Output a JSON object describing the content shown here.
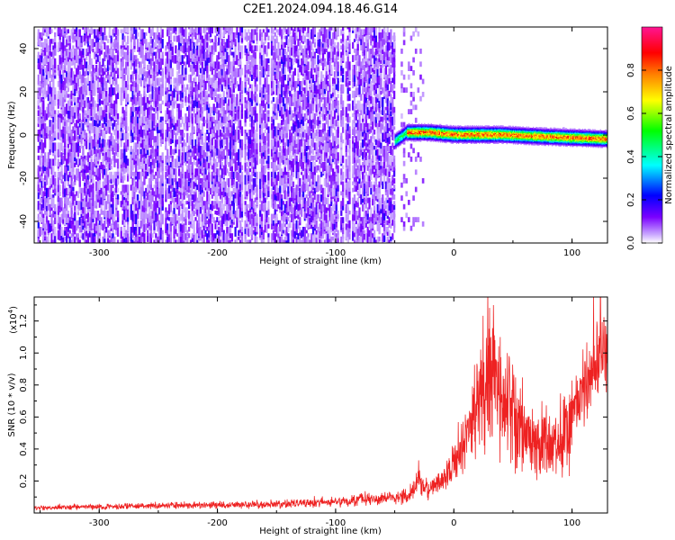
{
  "title": "C2E1.2024.094.18.46.G14",
  "chart_data": [
    {
      "type": "heatmap",
      "xlabel": "Height of straight line (km)",
      "ylabel": "Frequency (Hz)",
      "xlim": [
        -355,
        130
      ],
      "ylim": [
        -50,
        50
      ],
      "xticks": [
        -300,
        -200,
        -100,
        0,
        100
      ],
      "yticks": [
        -40,
        -20,
        0,
        20,
        40
      ],
      "colorbar": {
        "label": "Normalized spectral amplitude",
        "range": [
          0.0,
          1.0
        ],
        "ticks": [
          "0.0",
          "0.2",
          "0.4",
          "0.6",
          "0.8"
        ],
        "tick_values": [
          0.0,
          0.2,
          0.4,
          0.6,
          0.8
        ],
        "colors": [
          "#ffffff",
          "#c9a6ff",
          "#7a00ff",
          "#0000ff",
          "#00ffff",
          "#00ff00",
          "#ffff00",
          "#ff8000",
          "#ff0000",
          "#ff1493"
        ]
      },
      "features": {
        "noise_region_x": [
          -355,
          -50
        ],
        "sparse_noise_x": [
          -45,
          -25
        ],
        "signal_band_x": [
          -50,
          130
        ],
        "signal_center_frequency_hz": [
          [
            -50,
            -3
          ],
          [
            -40,
            1
          ],
          [
            -20,
            1
          ],
          [
            0,
            0
          ],
          [
            40,
            0
          ],
          [
            80,
            -1
          ],
          [
            130,
            -2
          ]
        ],
        "signal_peak_amplitude": 0.85
      }
    },
    {
      "type": "line",
      "xlabel": "Height of straight line (km)",
      "ylabel": "SNR (10 * v/v)",
      "exponent_label": "(x10",
      "exponent_power": "4",
      "exponent_close": ")",
      "xlim": [
        -355,
        130
      ],
      "ylim": [
        0,
        1.35
      ],
      "xticks": [
        -300,
        -200,
        -100,
        0,
        100
      ],
      "yticks": [
        "0.2",
        "0.4",
        "0.6",
        "0.8",
        "1.0",
        "1.2"
      ],
      "ytick_values": [
        0.2,
        0.4,
        0.6,
        0.8,
        1.0,
        1.2
      ],
      "series": [
        {
          "color": "#ee2222",
          "x": [
            -355,
            -300,
            -250,
            -200,
            -150,
            -100,
            -60,
            -40,
            -30,
            -20,
            -10,
            0,
            10,
            20,
            25,
            30,
            35,
            40,
            50,
            60,
            70,
            80,
            90,
            100,
            110,
            120,
            130
          ],
          "y": [
            0.03,
            0.04,
            0.045,
            0.05,
            0.055,
            0.07,
            0.09,
            0.1,
            0.2,
            0.14,
            0.2,
            0.3,
            0.45,
            0.65,
            0.8,
            0.95,
            0.85,
            0.75,
            0.62,
            0.52,
            0.45,
            0.4,
            0.45,
            0.6,
            0.8,
            0.95,
            1.05
          ]
        }
      ]
    }
  ]
}
